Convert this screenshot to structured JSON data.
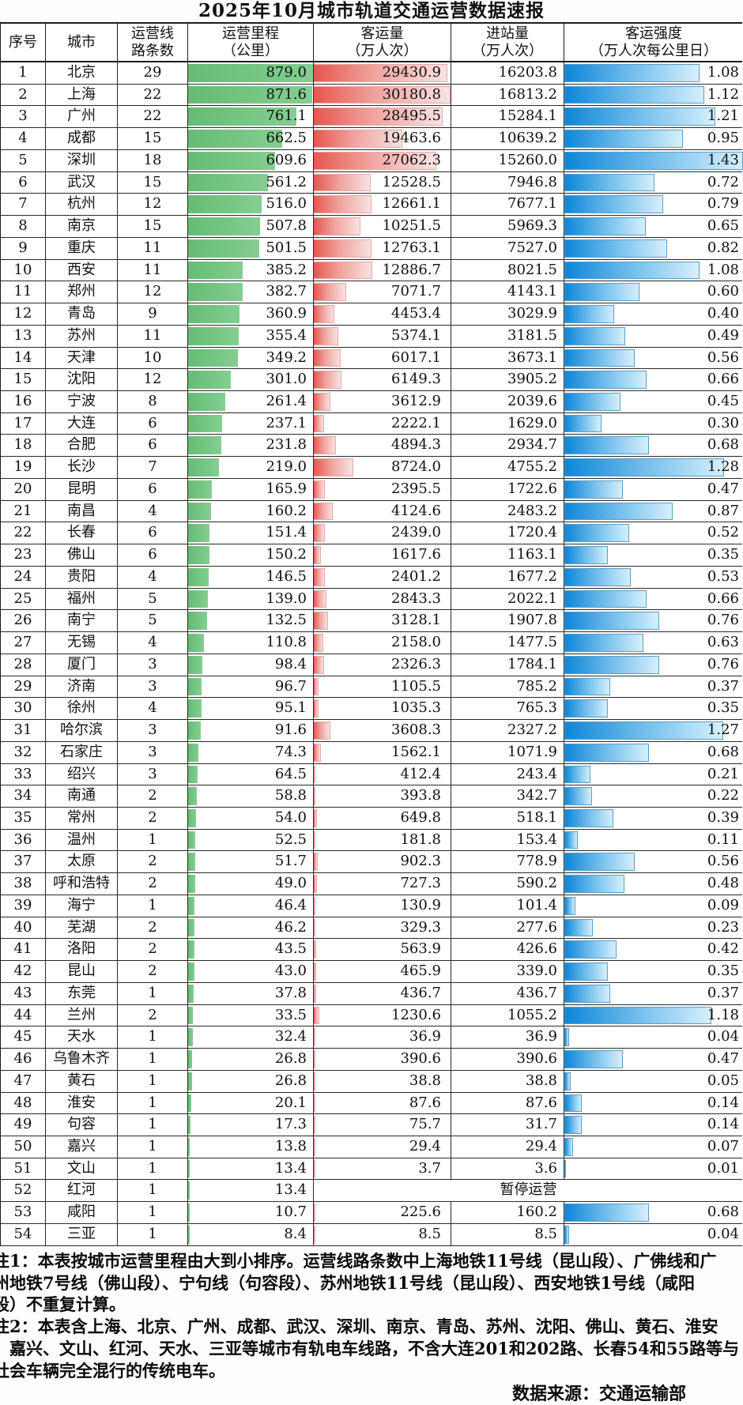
{
  "title": "2025年10月城市轨道交通运营数据速报",
  "table": {
    "header_lines": [
      [
        "序号"
      ],
      [
        "城市"
      ],
      [
        "运营线",
        "路条数"
      ],
      [
        "运营里程",
        "（公里）"
      ],
      [
        "客运量",
        "（万人次）"
      ],
      [
        "进站量",
        "（万人次）"
      ],
      [
        "客运强度",
        "（万人次每公里日）"
      ]
    ],
    "suspended_label": "暂停运营"
  },
  "colors": {
    "mileage_bar": "#65bc73",
    "mileage_bar_end": "#84ce91",
    "volume_bar_start": "#e6564d",
    "volume_bar_mid": "#f0a29d",
    "volume_bar_end": "#f8e2e1",
    "intensity_bar_start": "#0d86d8",
    "intensity_bar_mid": "#7cc3ee",
    "intensity_bar_end": "#d6effc",
    "grid_line": "#2a2a2a"
  },
  "chart_data": {
    "type": "table",
    "title": "2025年10月城市轨道交通运营数据速报",
    "columns": [
      "序号",
      "城市",
      "运营线路条数",
      "运营里程（公里）",
      "客运量（万人次）",
      "进站量（万人次）",
      "客运强度（万人次每公里日）"
    ],
    "bar_encodings": [
      {
        "column": "运营里程（公里）",
        "style": "green solid bar, scaled to max 879.0"
      },
      {
        "column": "客运量（万人次）",
        "style": "red-to-pink gradient bar, scaled to max 30180.8"
      },
      {
        "column": "客运强度（万人次每公里日）",
        "style": "blue gradient bar, scaled to max 1.43"
      }
    ],
    "rows": [
      {
        "no": "1",
        "city": "北京",
        "lines": "29",
        "mileage": "879.0",
        "volume": "29430.9",
        "entries": "16203.8",
        "intensity": "1.08"
      },
      {
        "no": "2",
        "city": "上海",
        "lines": "22",
        "mileage": "871.6",
        "volume": "30180.8",
        "entries": "16813.2",
        "intensity": "1.12"
      },
      {
        "no": "3",
        "city": "广州",
        "lines": "22",
        "mileage": "761.1",
        "volume": "28495.5",
        "entries": "15284.1",
        "intensity": "1.21"
      },
      {
        "no": "4",
        "city": "成都",
        "lines": "15",
        "mileage": "662.5",
        "volume": "19463.6",
        "entries": "10639.2",
        "intensity": "0.95"
      },
      {
        "no": "5",
        "city": "深圳",
        "lines": "18",
        "mileage": "609.6",
        "volume": "27062.3",
        "entries": "15260.0",
        "intensity": "1.43"
      },
      {
        "no": "6",
        "city": "武汉",
        "lines": "15",
        "mileage": "561.2",
        "volume": "12528.5",
        "entries": "7946.8",
        "intensity": "0.72"
      },
      {
        "no": "7",
        "city": "杭州",
        "lines": "12",
        "mileage": "516.0",
        "volume": "12661.1",
        "entries": "7677.1",
        "intensity": "0.79"
      },
      {
        "no": "8",
        "city": "南京",
        "lines": "15",
        "mileage": "507.8",
        "volume": "10251.5",
        "entries": "5969.3",
        "intensity": "0.65"
      },
      {
        "no": "9",
        "city": "重庆",
        "lines": "11",
        "mileage": "501.5",
        "volume": "12763.1",
        "entries": "7527.0",
        "intensity": "0.82"
      },
      {
        "no": "10",
        "city": "西安",
        "lines": "11",
        "mileage": "385.2",
        "volume": "12886.7",
        "entries": "8021.5",
        "intensity": "1.08"
      },
      {
        "no": "11",
        "city": "郑州",
        "lines": "12",
        "mileage": "382.7",
        "volume": "7071.7",
        "entries": "4143.1",
        "intensity": "0.60"
      },
      {
        "no": "12",
        "city": "青岛",
        "lines": "9",
        "mileage": "360.9",
        "volume": "4453.4",
        "entries": "3029.9",
        "intensity": "0.40"
      },
      {
        "no": "13",
        "city": "苏州",
        "lines": "11",
        "mileage": "355.4",
        "volume": "5374.1",
        "entries": "3181.5",
        "intensity": "0.49"
      },
      {
        "no": "14",
        "city": "天津",
        "lines": "10",
        "mileage": "349.2",
        "volume": "6017.1",
        "entries": "3673.1",
        "intensity": "0.56"
      },
      {
        "no": "15",
        "city": "沈阳",
        "lines": "12",
        "mileage": "301.0",
        "volume": "6149.3",
        "entries": "3905.2",
        "intensity": "0.66"
      },
      {
        "no": "16",
        "city": "宁波",
        "lines": "8",
        "mileage": "261.4",
        "volume": "3612.9",
        "entries": "2039.6",
        "intensity": "0.45"
      },
      {
        "no": "17",
        "city": "大连",
        "lines": "6",
        "mileage": "237.1",
        "volume": "2222.1",
        "entries": "1629.0",
        "intensity": "0.30"
      },
      {
        "no": "18",
        "city": "合肥",
        "lines": "6",
        "mileage": "231.8",
        "volume": "4894.3",
        "entries": "2934.7",
        "intensity": "0.68"
      },
      {
        "no": "19",
        "city": "长沙",
        "lines": "7",
        "mileage": "219.0",
        "volume": "8724.0",
        "entries": "4755.2",
        "intensity": "1.28"
      },
      {
        "no": "20",
        "city": "昆明",
        "lines": "6",
        "mileage": "165.9",
        "volume": "2395.5",
        "entries": "1722.6",
        "intensity": "0.47"
      },
      {
        "no": "21",
        "city": "南昌",
        "lines": "4",
        "mileage": "160.2",
        "volume": "4124.6",
        "entries": "2483.2",
        "intensity": "0.87"
      },
      {
        "no": "22",
        "city": "长春",
        "lines": "6",
        "mileage": "151.4",
        "volume": "2439.0",
        "entries": "1720.4",
        "intensity": "0.52"
      },
      {
        "no": "23",
        "city": "佛山",
        "lines": "6",
        "mileage": "150.2",
        "volume": "1617.6",
        "entries": "1163.1",
        "intensity": "0.35"
      },
      {
        "no": "24",
        "city": "贵阳",
        "lines": "4",
        "mileage": "146.5",
        "volume": "2401.2",
        "entries": "1677.2",
        "intensity": "0.53"
      },
      {
        "no": "25",
        "city": "福州",
        "lines": "5",
        "mileage": "139.0",
        "volume": "2843.3",
        "entries": "2022.1",
        "intensity": "0.66"
      },
      {
        "no": "26",
        "city": "南宁",
        "lines": "5",
        "mileage": "132.5",
        "volume": "3128.1",
        "entries": "1907.8",
        "intensity": "0.76"
      },
      {
        "no": "27",
        "city": "无锡",
        "lines": "4",
        "mileage": "110.8",
        "volume": "2158.0",
        "entries": "1477.5",
        "intensity": "0.63"
      },
      {
        "no": "28",
        "city": "厦门",
        "lines": "3",
        "mileage": "98.4",
        "volume": "2326.3",
        "entries": "1784.1",
        "intensity": "0.76"
      },
      {
        "no": "29",
        "city": "济南",
        "lines": "3",
        "mileage": "96.7",
        "volume": "1105.5",
        "entries": "785.2",
        "intensity": "0.37"
      },
      {
        "no": "30",
        "city": "徐州",
        "lines": "4",
        "mileage": "95.1",
        "volume": "1035.3",
        "entries": "765.3",
        "intensity": "0.35"
      },
      {
        "no": "31",
        "city": "哈尔滨",
        "lines": "3",
        "mileage": "91.6",
        "volume": "3608.3",
        "entries": "2327.2",
        "intensity": "1.27"
      },
      {
        "no": "32",
        "city": "石家庄",
        "lines": "3",
        "mileage": "74.3",
        "volume": "1562.1",
        "entries": "1071.9",
        "intensity": "0.68"
      },
      {
        "no": "33",
        "city": "绍兴",
        "lines": "3",
        "mileage": "64.5",
        "volume": "412.4",
        "entries": "243.4",
        "intensity": "0.21"
      },
      {
        "no": "34",
        "city": "南通",
        "lines": "2",
        "mileage": "58.8",
        "volume": "393.8",
        "entries": "342.7",
        "intensity": "0.22"
      },
      {
        "no": "35",
        "city": "常州",
        "lines": "2",
        "mileage": "54.0",
        "volume": "649.8",
        "entries": "518.1",
        "intensity": "0.39"
      },
      {
        "no": "36",
        "city": "温州",
        "lines": "1",
        "mileage": "52.5",
        "volume": "181.8",
        "entries": "153.4",
        "intensity": "0.11"
      },
      {
        "no": "37",
        "city": "太原",
        "lines": "2",
        "mileage": "51.7",
        "volume": "902.3",
        "entries": "778.9",
        "intensity": "0.56"
      },
      {
        "no": "38",
        "city": "呼和浩特",
        "lines": "2",
        "mileage": "49.0",
        "volume": "727.3",
        "entries": "590.2",
        "intensity": "0.48"
      },
      {
        "no": "39",
        "city": "海宁",
        "lines": "1",
        "mileage": "46.4",
        "volume": "130.9",
        "entries": "101.4",
        "intensity": "0.09"
      },
      {
        "no": "40",
        "city": "芜湖",
        "lines": "2",
        "mileage": "46.2",
        "volume": "329.3",
        "entries": "277.6",
        "intensity": "0.23"
      },
      {
        "no": "41",
        "city": "洛阳",
        "lines": "2",
        "mileage": "43.5",
        "volume": "563.9",
        "entries": "426.6",
        "intensity": "0.42"
      },
      {
        "no": "42",
        "city": "昆山",
        "lines": "2",
        "mileage": "43.0",
        "volume": "465.9",
        "entries": "339.0",
        "intensity": "0.35"
      },
      {
        "no": "43",
        "city": "东莞",
        "lines": "1",
        "mileage": "37.8",
        "volume": "436.7",
        "entries": "436.7",
        "intensity": "0.37"
      },
      {
        "no": "44",
        "city": "兰州",
        "lines": "2",
        "mileage": "33.5",
        "volume": "1230.6",
        "entries": "1055.2",
        "intensity": "1.18"
      },
      {
        "no": "45",
        "city": "天水",
        "lines": "1",
        "mileage": "32.4",
        "volume": "36.9",
        "entries": "36.9",
        "intensity": "0.04"
      },
      {
        "no": "46",
        "city": "乌鲁木齐",
        "lines": "1",
        "mileage": "26.8",
        "volume": "390.6",
        "entries": "390.6",
        "intensity": "0.47"
      },
      {
        "no": "47",
        "city": "黄石",
        "lines": "1",
        "mileage": "26.8",
        "volume": "38.8",
        "entries": "38.8",
        "intensity": "0.05"
      },
      {
        "no": "48",
        "city": "淮安",
        "lines": "1",
        "mileage": "20.1",
        "volume": "87.6",
        "entries": "87.6",
        "intensity": "0.14"
      },
      {
        "no": "49",
        "city": "句容",
        "lines": "1",
        "mileage": "17.3",
        "volume": "75.7",
        "entries": "31.7",
        "intensity": "0.14"
      },
      {
        "no": "50",
        "city": "嘉兴",
        "lines": "1",
        "mileage": "13.8",
        "volume": "29.4",
        "entries": "29.4",
        "intensity": "0.07"
      },
      {
        "no": "51",
        "city": "文山",
        "lines": "1",
        "mileage": "13.4",
        "volume": "3.7",
        "entries": "3.6",
        "intensity": "0.01"
      },
      {
        "no": "52",
        "city": "红河",
        "lines": "1",
        "mileage": "13.4",
        "status": "暂停运营"
      },
      {
        "no": "53",
        "city": "咸阳",
        "lines": "1",
        "mileage": "10.7",
        "volume": "225.6",
        "entries": "160.2",
        "intensity": "0.68"
      },
      {
        "no": "54",
        "city": "三亚",
        "lines": "1",
        "mileage": "8.4",
        "volume": "8.5",
        "entries": "8.5",
        "intensity": "0.04"
      }
    ]
  },
  "notes": [
    "注1：本表按城市运营里程由大到小排序。运营线路条数中上海地铁11号线（昆山段）、广佛线和广",
    "州地铁7号线（佛山段）、宁句线（句容段）、苏州地铁11号线（昆山段）、西安地铁1号线（咸阳",
    "段）不重复计算。",
    "注2：本表含上海、北京、广州、成都、武汉、深圳、南京、青岛、苏州、沈阳、佛山、黄石、淮安",
    "、嘉兴、文山、红河、天水、三亚等城市有轨电车线路，不含大连201和202路、长春54和55路等与",
    "社会车辆完全混行的传统电车。"
  ],
  "source": "数据来源：交通运输部"
}
